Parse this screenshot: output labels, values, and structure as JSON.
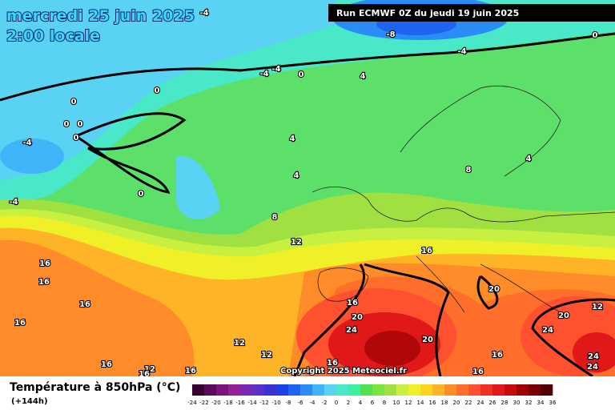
{
  "header": {
    "date": "mercredi 25 juin 2025",
    "time": "2:00 locale",
    "run": "Run ECMWF 0Z du jeudi 19 juin 2025"
  },
  "map": {
    "contour_labels": [
      -4,
      -8,
      0,
      -4,
      -4,
      -4,
      0,
      4,
      0,
      0,
      0,
      0,
      0,
      -4,
      4,
      8,
      4,
      4,
      0,
      -4,
      8,
      12,
      16,
      16,
      16,
      20,
      16,
      16,
      12,
      20,
      20,
      16,
      24,
      24,
      12,
      12,
      20,
      16,
      24,
      16,
      16,
      24,
      12,
      16,
      16,
      16
    ]
  },
  "copyright": "Copyright 2025 Meteociel.fr",
  "legend": {
    "title": "Température à 850hPa (°C)",
    "lead_time": "(+144h)",
    "ticks": [
      -24,
      -22,
      -20,
      -18,
      -16,
      -14,
      -12,
      -10,
      -8,
      -6,
      -4,
      -2,
      0,
      2,
      4,
      6,
      8,
      10,
      12,
      14,
      16,
      18,
      20,
      22,
      24,
      26,
      28,
      30,
      32,
      34,
      36
    ],
    "colors": [
      "#3a0030",
      "#5a0a5a",
      "#7a1478",
      "#961e96",
      "#7a28b4",
      "#5a32c8",
      "#3c32d2",
      "#1e40e6",
      "#1e64f0",
      "#2a8cf5",
      "#40b4f8",
      "#5ad2f4",
      "#48e8c8",
      "#3cf0a0",
      "#50e050",
      "#78e640",
      "#a0e040",
      "#c8f040",
      "#f0f028",
      "#ffd21e",
      "#ffb428",
      "#ff8c28",
      "#ff6e2a",
      "#ff5030",
      "#f03020",
      "#e01818",
      "#c80a0a",
      "#a00000",
      "#780000",
      "#500000"
    ]
  }
}
